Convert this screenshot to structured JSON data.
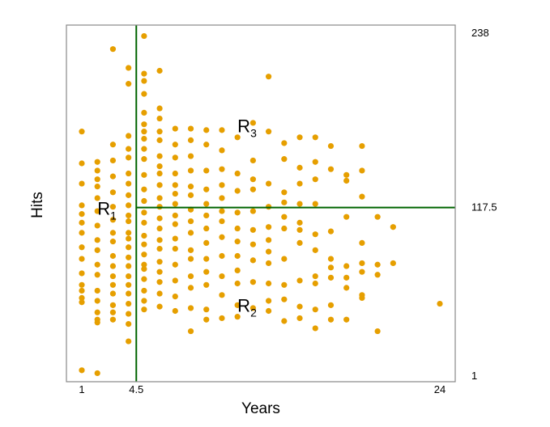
{
  "chart_data": {
    "type": "scatter",
    "xlabel": "Years",
    "ylabel": "Hits",
    "xlim": [
      1,
      24
    ],
    "ylim": [
      1,
      238
    ],
    "x_ticks": [
      "1",
      "4.5",
      "24"
    ],
    "y_ticks": [
      "1",
      "117.5",
      "238"
    ],
    "point_color": "#E69F00",
    "split_color": "#006400",
    "splits": {
      "vertical": {
        "x": 4.5,
        "label": "4.5"
      },
      "horizontal": {
        "y": 117.5,
        "from_x": 4.5,
        "label": "117.5"
      }
    },
    "regions": [
      {
        "name": "R1",
        "base": "R",
        "sub": "1",
        "x": 2,
        "y": 117
      },
      {
        "name": "R2",
        "base": "R",
        "sub": "2",
        "x": 11,
        "y": 50
      },
      {
        "name": "R3",
        "base": "R",
        "sub": "3",
        "x": 11,
        "y": 174
      }
    ],
    "points": [
      [
        1,
        5
      ],
      [
        2,
        3
      ],
      [
        1,
        170
      ],
      [
        1,
        148
      ],
      [
        1,
        134
      ],
      [
        1,
        119
      ],
      [
        1,
        113
      ],
      [
        1,
        107
      ],
      [
        1,
        100
      ],
      [
        1,
        90
      ],
      [
        1,
        82
      ],
      [
        1,
        72
      ],
      [
        1,
        64
      ],
      [
        1,
        60
      ],
      [
        1,
        55
      ],
      [
        1,
        52
      ],
      [
        2,
        149
      ],
      [
        2,
        143
      ],
      [
        2,
        137
      ],
      [
        2,
        132
      ],
      [
        2,
        124
      ],
      [
        2,
        115
      ],
      [
        2,
        105
      ],
      [
        2,
        95
      ],
      [
        2,
        88
      ],
      [
        2,
        78
      ],
      [
        2,
        71
      ],
      [
        2,
        60
      ],
      [
        2,
        53
      ],
      [
        2,
        45
      ],
      [
        2,
        40
      ],
      [
        2,
        38
      ],
      [
        3,
        227
      ],
      [
        3,
        161
      ],
      [
        3,
        150
      ],
      [
        3,
        139
      ],
      [
        3,
        128
      ],
      [
        3,
        118
      ],
      [
        3,
        109
      ],
      [
        3,
        100
      ],
      [
        3,
        94
      ],
      [
        3,
        84
      ],
      [
        3,
        77
      ],
      [
        3,
        70
      ],
      [
        3,
        64
      ],
      [
        3,
        58
      ],
      [
        3,
        50
      ],
      [
        3,
        45
      ],
      [
        3,
        40
      ],
      [
        4,
        214
      ],
      [
        4,
        203
      ],
      [
        4,
        167
      ],
      [
        4,
        158
      ],
      [
        4,
        152
      ],
      [
        4,
        141
      ],
      [
        4,
        134
      ],
      [
        4,
        126
      ],
      [
        4,
        119
      ],
      [
        4,
        112
      ],
      [
        4,
        108
      ],
      [
        4,
        100
      ],
      [
        4,
        96
      ],
      [
        4,
        90
      ],
      [
        4,
        83
      ],
      [
        4,
        77
      ],
      [
        4,
        70
      ],
      [
        4,
        64
      ],
      [
        4,
        58
      ],
      [
        4,
        51
      ],
      [
        4,
        44
      ],
      [
        4,
        37
      ],
      [
        4,
        25
      ],
      [
        5,
        236
      ],
      [
        5,
        210
      ],
      [
        5,
        205
      ],
      [
        5,
        196
      ],
      [
        5,
        183
      ],
      [
        5,
        175
      ],
      [
        5,
        170
      ],
      [
        5,
        165
      ],
      [
        5,
        158
      ],
      [
        5,
        151
      ],
      [
        5,
        140
      ],
      [
        5,
        130
      ],
      [
        5,
        122
      ],
      [
        5,
        114
      ],
      [
        5,
        107
      ],
      [
        5,
        98
      ],
      [
        5,
        92
      ],
      [
        5,
        85
      ],
      [
        5,
        78
      ],
      [
        5,
        75
      ],
      [
        5,
        68
      ],
      [
        5,
        60
      ],
      [
        5,
        53
      ],
      [
        5,
        47
      ],
      [
        6,
        212
      ],
      [
        6,
        186
      ],
      [
        6,
        179
      ],
      [
        6,
        170
      ],
      [
        6,
        164
      ],
      [
        6,
        153
      ],
      [
        6,
        146
      ],
      [
        6,
        141
      ],
      [
        6,
        133
      ],
      [
        6,
        124
      ],
      [
        6,
        118
      ],
      [
        6,
        110
      ],
      [
        6,
        103
      ],
      [
        6,
        95
      ],
      [
        6,
        89
      ],
      [
        6,
        80
      ],
      [
        6,
        73
      ],
      [
        6,
        66
      ],
      [
        6,
        58
      ],
      [
        6,
        49
      ],
      [
        7,
        172
      ],
      [
        7,
        161
      ],
      [
        7,
        152
      ],
      [
        7,
        141
      ],
      [
        7,
        133
      ],
      [
        7,
        127
      ],
      [
        7,
        120
      ],
      [
        7,
        112
      ],
      [
        7,
        106
      ],
      [
        7,
        96
      ],
      [
        7,
        89
      ],
      [
        7,
        78
      ],
      [
        7,
        67
      ],
      [
        7,
        56
      ],
      [
        7,
        46
      ],
      [
        8,
        172
      ],
      [
        8,
        164
      ],
      [
        8,
        153
      ],
      [
        8,
        143
      ],
      [
        8,
        132
      ],
      [
        8,
        126
      ],
      [
        8,
        116
      ],
      [
        8,
        108
      ],
      [
        8,
        100
      ],
      [
        8,
        88
      ],
      [
        8,
        82
      ],
      [
        8,
        70
      ],
      [
        8,
        62
      ],
      [
        8,
        48
      ],
      [
        8,
        32
      ],
      [
        9,
        171
      ],
      [
        9,
        161
      ],
      [
        9,
        143
      ],
      [
        9,
        130
      ],
      [
        9,
        120
      ],
      [
        9,
        112
      ],
      [
        9,
        103
      ],
      [
        9,
        93
      ],
      [
        9,
        82
      ],
      [
        9,
        73
      ],
      [
        9,
        64
      ],
      [
        9,
        47
      ],
      [
        9,
        40
      ],
      [
        10,
        171
      ],
      [
        10,
        157
      ],
      [
        10,
        144
      ],
      [
        10,
        133
      ],
      [
        10,
        124
      ],
      [
        10,
        115
      ],
      [
        10,
        108
      ],
      [
        10,
        97
      ],
      [
        10,
        84
      ],
      [
        10,
        70
      ],
      [
        10,
        57
      ],
      [
        10,
        41
      ],
      [
        11,
        166
      ],
      [
        11,
        141
      ],
      [
        11,
        129
      ],
      [
        11,
        114
      ],
      [
        11,
        103
      ],
      [
        11,
        94
      ],
      [
        11,
        84
      ],
      [
        11,
        74
      ],
      [
        11,
        65
      ],
      [
        11,
        50
      ],
      [
        11,
        42
      ],
      [
        12,
        176
      ],
      [
        12,
        150
      ],
      [
        12,
        137
      ],
      [
        12,
        130
      ],
      [
        12,
        115
      ],
      [
        12,
        102
      ],
      [
        12,
        92
      ],
      [
        12,
        81
      ],
      [
        12,
        66
      ],
      [
        12,
        48
      ],
      [
        13,
        208
      ],
      [
        13,
        170
      ],
      [
        13,
        134
      ],
      [
        13,
        118
      ],
      [
        13,
        104
      ],
      [
        13,
        95
      ],
      [
        13,
        87
      ],
      [
        13,
        79
      ],
      [
        13,
        65
      ],
      [
        13,
        53
      ],
      [
        13,
        46
      ],
      [
        14,
        162
      ],
      [
        14,
        151
      ],
      [
        14,
        128
      ],
      [
        14,
        121
      ],
      [
        14,
        111
      ],
      [
        14,
        103
      ],
      [
        14,
        82
      ],
      [
        14,
        64
      ],
      [
        14,
        54
      ],
      [
        14,
        39
      ],
      [
        15,
        166
      ],
      [
        15,
        145
      ],
      [
        15,
        134
      ],
      [
        15,
        120
      ],
      [
        15,
        107
      ],
      [
        15,
        102
      ],
      [
        15,
        93
      ],
      [
        15,
        67
      ],
      [
        15,
        49
      ],
      [
        15,
        41
      ],
      [
        16,
        166
      ],
      [
        16,
        149
      ],
      [
        16,
        137
      ],
      [
        16,
        120
      ],
      [
        16,
        99
      ],
      [
        16,
        88
      ],
      [
        16,
        70
      ],
      [
        16,
        65
      ],
      [
        16,
        47
      ],
      [
        16,
        34
      ],
      [
        17,
        160
      ],
      [
        17,
        144
      ],
      [
        17,
        101
      ],
      [
        17,
        82
      ],
      [
        17,
        76
      ],
      [
        17,
        69
      ],
      [
        17,
        50
      ],
      [
        17,
        40
      ],
      [
        18,
        140
      ],
      [
        18,
        136
      ],
      [
        18,
        111
      ],
      [
        18,
        77
      ],
      [
        18,
        69
      ],
      [
        18,
        62
      ],
      [
        18,
        40
      ],
      [
        19,
        143
      ],
      [
        19,
        160
      ],
      [
        19,
        125
      ],
      [
        19,
        93
      ],
      [
        19,
        79
      ],
      [
        19,
        73
      ],
      [
        19,
        57
      ],
      [
        19,
        55
      ],
      [
        20,
        111
      ],
      [
        20,
        78
      ],
      [
        20,
        71
      ],
      [
        20,
        32
      ],
      [
        21,
        104
      ],
      [
        21,
        79
      ],
      [
        24,
        51
      ]
    ]
  }
}
